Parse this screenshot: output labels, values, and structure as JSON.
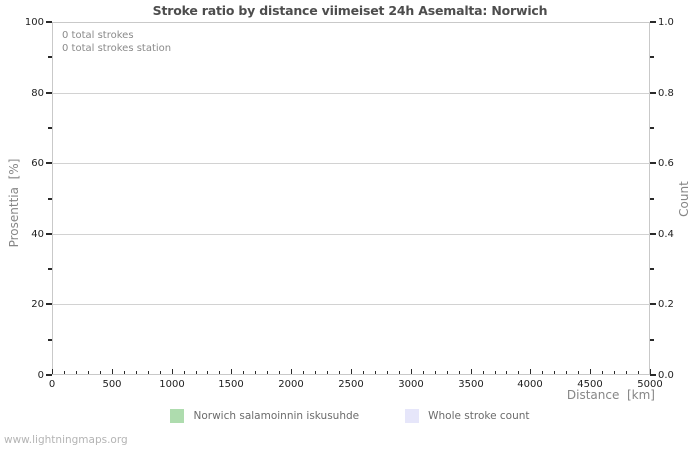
{
  "watermark": "www.lightningmaps.org",
  "colors": {
    "background": "#ffffff",
    "plot_border": "#c9c9c9",
    "gridline": "#d2d2d2",
    "tick": "#2a2a2a",
    "title_text": "#4d4d4d",
    "axis_title_text": "#868686",
    "annotation_text": "#8a8a8a",
    "legend_green": "#aedcae",
    "legend_lavender": "#e6e6fa",
    "watermark_text": "#b4b4b4"
  },
  "legend": {
    "items": [
      {
        "label": "Norwich salamoinnin iskusuhde",
        "color": "#aedcae"
      },
      {
        "label": "Whole stroke count",
        "color": "#e6e6fa"
      }
    ]
  },
  "chart_data": {
    "type": "bar",
    "title": "Stroke ratio by distance viimeiset 24h Asemalta: Norwich",
    "annotations": [
      "0 total strokes",
      "0 total strokes station"
    ],
    "grid": true,
    "legend_position": "bottom",
    "x_axis": {
      "label": "Distance  [km]",
      "min": 0,
      "max": 5000,
      "major_step": 500,
      "minor_step": 100,
      "tick_labels": [
        "0",
        "500",
        "1000",
        "1500",
        "2000",
        "2500",
        "3000",
        "3500",
        "4000",
        "4500",
        "5000"
      ]
    },
    "y_left": {
      "label": "Prosenttia  [%]",
      "min": 0,
      "max": 100,
      "major_step": 20,
      "minor_step": 10,
      "tick_labels": [
        "0",
        "20",
        "40",
        "60",
        "80",
        "100"
      ]
    },
    "y_right": {
      "label": "Count",
      "min": 0,
      "max": 1,
      "major_step": 0.2,
      "minor_step": 0.1,
      "tick_labels": [
        "0.0",
        "0.2",
        "0.4",
        "0.6",
        "0.8",
        "1.0"
      ]
    },
    "series": [
      {
        "name": "Norwich salamoinnin iskusuhde",
        "color": "#aedcae",
        "values": []
      },
      {
        "name": "Whole stroke count",
        "color": "#e6e6fa",
        "values": []
      }
    ]
  }
}
